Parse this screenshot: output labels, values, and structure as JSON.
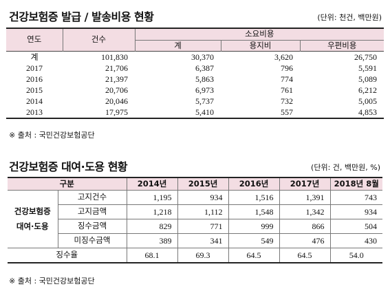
{
  "section1": {
    "title": "건강보험증 발급 / 발송비용 현황",
    "unit": "(단위: 천건, 백만원)",
    "header": {
      "year": "연도",
      "count": "건수",
      "cost_group": "소요비용",
      "total": "계",
      "paper": "용지비",
      "postage": "우편비용"
    },
    "rows": [
      {
        "year": "계",
        "count": "101,830",
        "total": "30,370",
        "paper": "3,620",
        "postage": "26,750"
      },
      {
        "year": "2017",
        "count": "21,706",
        "total": "6,387",
        "paper": "796",
        "postage": "5,591"
      },
      {
        "year": "2016",
        "count": "21,397",
        "total": "5,863",
        "paper": "774",
        "postage": "5,089"
      },
      {
        "year": "2015",
        "count": "20,706",
        "total": "6,973",
        "paper": "761",
        "postage": "6,212"
      },
      {
        "year": "2014",
        "count": "20,046",
        "total": "5,737",
        "paper": "732",
        "postage": "5,005"
      },
      {
        "year": "2013",
        "count": "17,975",
        "total": "5,410",
        "paper": "557",
        "postage": "4,853"
      }
    ],
    "source": "※ 출처 : 국민건강보험공단"
  },
  "section2": {
    "title": "건강보험증 대여·도용 현황",
    "unit": "(단위: 건, 백만원, %)",
    "header": {
      "category": "구분",
      "years": [
        "2014년",
        "2015년",
        "2016년",
        "2017년",
        "2018년 8월"
      ]
    },
    "category_label_1": "건강보험증",
    "category_label_2": "대여·도용",
    "rows": [
      {
        "label": "고지건수",
        "values": [
          "1,195",
          "934",
          "1,516",
          "1,391",
          "743"
        ]
      },
      {
        "label": "고지금액",
        "values": [
          "1,218",
          "1,112",
          "1,548",
          "1,342",
          "934"
        ]
      },
      {
        "label": "징수금액",
        "values": [
          "829",
          "771",
          "999",
          "866",
          "504"
        ]
      },
      {
        "label": "미징수금액",
        "values": [
          "389",
          "341",
          "549",
          "476",
          "430"
        ]
      }
    ],
    "rate_row": {
      "label": "징수율",
      "values": [
        "68.1",
        "69.3",
        "64.5",
        "64.5",
        "54.0"
      ]
    },
    "source": "※ 출처 : 국민건강보험공단"
  }
}
